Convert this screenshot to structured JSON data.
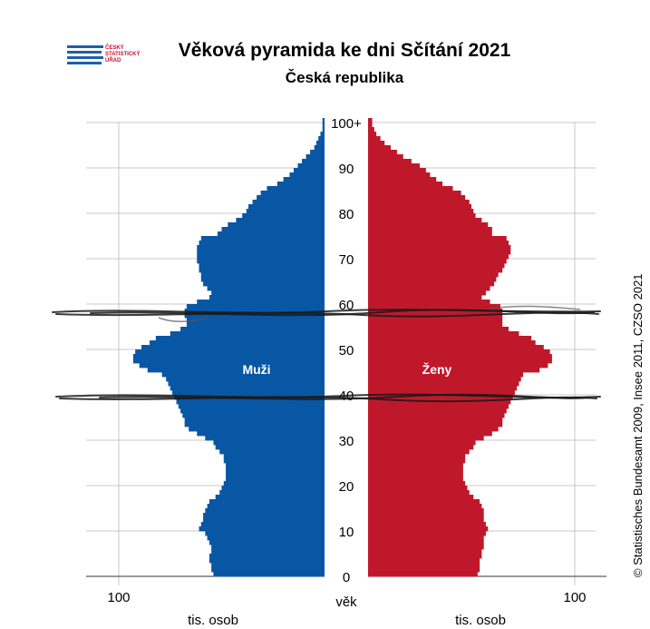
{
  "header": {
    "logo_lines": [
      "ČESKÝ",
      "STATISTICKÝ",
      "ÚŘAD"
    ],
    "title": "Věková pyramida ke dni Sčítání 2021",
    "subtitle": "Česká republika"
  },
  "credit": "© Statistisches Bundesamt 2009, Insee 2011, CZSO 2021",
  "chart_data": {
    "type": "bar",
    "orientation": "horizontal-pyramid",
    "y_axis_label": "věk",
    "x_axis_unit_left": "tis. osob",
    "x_axis_unit_right": "tis. osob",
    "x_tick_left": "100",
    "x_tick_right": "100",
    "xlim": [
      0,
      100
    ],
    "ylim": [
      0,
      100
    ],
    "age_ticks": [
      "0",
      "10",
      "20",
      "30",
      "40",
      "50",
      "60",
      "70",
      "80",
      "90",
      "100+"
    ],
    "colors": {
      "male": "#0857a5",
      "female": "#c0182b"
    },
    "series": [
      {
        "name": "Muži",
        "values": [
          54,
          55,
          55,
          56,
          56,
          55,
          55,
          56,
          57,
          58,
          61,
          60,
          59,
          59,
          58,
          57,
          56,
          53,
          51,
          50,
          49,
          48,
          48,
          48,
          48,
          49,
          49,
          51,
          53,
          54,
          58,
          62,
          66,
          68,
          68,
          69,
          70,
          71,
          72,
          73,
          74,
          75,
          76,
          77,
          79,
          86,
          90,
          93,
          93,
          92,
          89,
          85,
          82,
          75,
          70,
          67,
          67,
          68,
          68,
          67,
          62,
          56,
          55,
          57,
          59,
          60,
          60,
          61,
          61,
          62,
          62,
          62,
          62,
          61,
          60,
          52,
          50,
          47,
          43,
          40,
          38,
          37,
          35,
          33,
          31,
          28,
          23,
          20,
          17,
          15,
          13,
          11,
          9,
          7,
          5,
          4,
          3,
          2,
          1,
          1,
          1
        ]
      },
      {
        "name": "Ženy",
        "values": [
          53,
          54,
          54,
          54,
          55,
          55,
          56,
          56,
          56,
          57,
          58,
          57,
          56,
          56,
          56,
          55,
          54,
          51,
          49,
          48,
          47,
          46,
          46,
          46,
          46,
          47,
          47,
          49,
          51,
          52,
          56,
          60,
          63,
          65,
          65,
          66,
          67,
          68,
          69,
          70,
          71,
          72,
          73,
          74,
          75,
          83,
          87,
          89,
          89,
          88,
          85,
          81,
          79,
          73,
          68,
          65,
          65,
          65,
          65,
          64,
          59,
          55,
          57,
          59,
          61,
          62,
          63,
          65,
          66,
          67,
          68,
          69,
          69,
          68,
          67,
          60,
          60,
          58,
          55,
          52,
          51,
          50,
          49,
          47,
          45,
          41,
          36,
          33,
          30,
          28,
          25,
          21,
          17,
          14,
          11,
          8,
          6,
          4,
          3,
          2,
          2
        ]
      }
    ],
    "annotations": [
      "Muži",
      "Ženy"
    ]
  }
}
